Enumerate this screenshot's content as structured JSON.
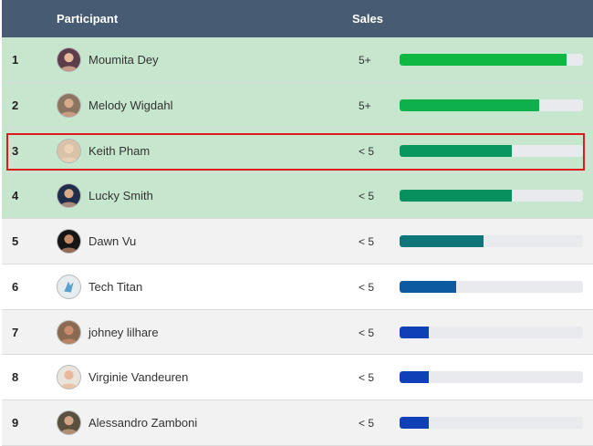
{
  "header": {
    "participant_label": "Participant",
    "sales_label": "Sales"
  },
  "rows": [
    {
      "rank": "1",
      "name": "Moumita Dey",
      "sales": "5+",
      "progress": 0.91,
      "bar_color": "#0fb843",
      "avatar": "portrait-avatar",
      "avatar_bg": "#5c3d4a",
      "avatar_face": "#e5b99a"
    },
    {
      "rank": "2",
      "name": "Melody Wigdahl",
      "sales": "5+",
      "progress": 0.76,
      "bar_color": "#0db04a",
      "avatar": "portrait-avatar",
      "avatar_bg": "#8a7560",
      "avatar_face": "#d9a98b"
    },
    {
      "rank": "3",
      "name": "Keith Pham",
      "sales": "< 5",
      "progress": 0.61,
      "bar_color": "#08975c",
      "avatar": "portrait-avatar",
      "avatar_bg": "#d8c3a8",
      "avatar_face": "#efd3b8"
    },
    {
      "rank": "4",
      "name": "Lucky Smith",
      "sales": "< 5",
      "progress": 0.61,
      "bar_color": "#08915f",
      "avatar": "portrait-avatar",
      "avatar_bg": "#1f2e4a",
      "avatar_face": "#d9a988"
    },
    {
      "rank": "5",
      "name": "Dawn Vu",
      "sales": "< 5",
      "progress": 0.46,
      "bar_color": "#0e7578",
      "avatar": "portrait-avatar",
      "avatar_bg": "#151515",
      "avatar_face": "#c48a6a"
    },
    {
      "rank": "6",
      "name": "Tech Titan",
      "sales": "< 5",
      "progress": 0.31,
      "bar_color": "#0e5aa0",
      "avatar": "logo-avatar",
      "avatar_bg": "#e7ecee",
      "avatar_face": "#5aa1c8"
    },
    {
      "rank": "7",
      "name": "johney lilhare",
      "sales": "< 5",
      "progress": 0.16,
      "bar_color": "#1040b8",
      "avatar": "portrait-avatar",
      "avatar_bg": "#8a6a52",
      "avatar_face": "#c98c6c"
    },
    {
      "rank": "8",
      "name": "Virginie Vandeuren",
      "sales": "< 5",
      "progress": 0.16,
      "bar_color": "#1040b8",
      "avatar": "portrait-avatar",
      "avatar_bg": "#e9e4dc",
      "avatar_face": "#e8b89a"
    },
    {
      "rank": "9",
      "name": "Alessandro Zamboni",
      "sales": "< 5",
      "progress": 0.16,
      "bar_color": "#1040b8",
      "avatar": "portrait-avatar",
      "avatar_bg": "#5a5040",
      "avatar_face": "#d4a486"
    }
  ],
  "highlighted_rank": "3",
  "colors": {
    "header_bg": "#475c72",
    "top_row_bg": "#c6e7cd",
    "odd_row_bg": "#f2f2f2",
    "even_row_bg": "#ffffff",
    "highlight_border": "#e01b1b"
  }
}
